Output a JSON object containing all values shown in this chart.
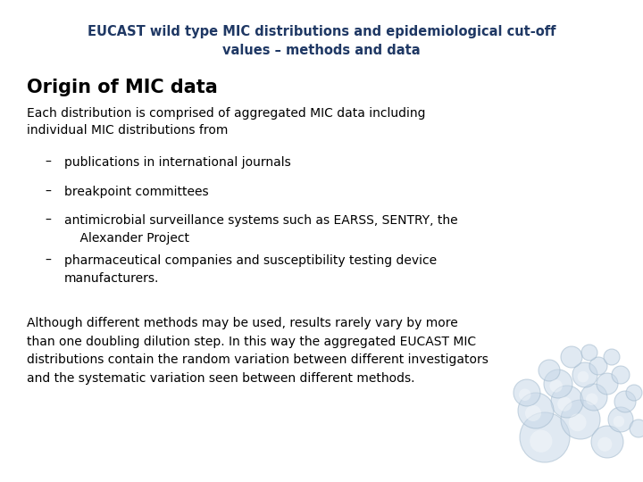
{
  "title_line1": "EUCAST wild type MIC distributions and epidemiological cut-off",
  "title_line2": "values – methods and data",
  "title_color": "#1f3864",
  "title_fontsize": 10.5,
  "heading": "Origin of MIC data",
  "heading_fontsize": 15,
  "heading_color": "#000000",
  "intro_text": "Each distribution is comprised of aggregated MIC data including\nindividual MIC distributions from",
  "body_fontsize": 10,
  "bullet_dash": "–",
  "bullets": [
    "publications in international journals",
    "breakpoint committees",
    "antimicrobial surveillance systems such as EARSS, SENTRY, the\n    Alexander Project",
    "pharmaceutical companies and susceptibility testing device\nmanufacturers."
  ],
  "footer_text": "Although different methods may be used, results rarely vary by more\nthan one doubling dilution step. In this way the aggregated EUCAST MIC\ndistributions contain the random variation between different investigators\nand the systematic variation seen between different methods.",
  "body_color": "#000000",
  "background_color": "#ffffff",
  "fig_width": 7.2,
  "fig_height": 5.4,
  "dpi": 100
}
